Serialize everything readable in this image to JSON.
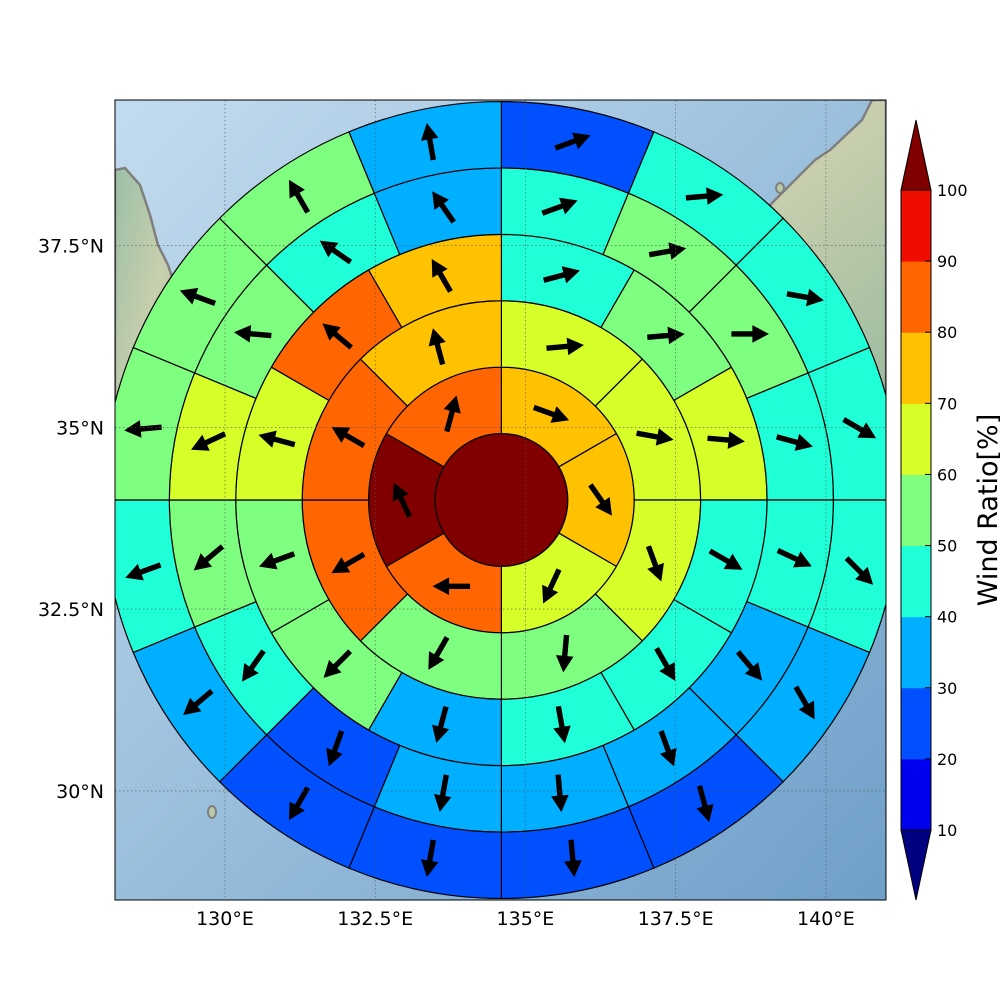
{
  "chart_data": {
    "type": "heatmap",
    "subtype": "polar-sector wind map over geographic basemap",
    "title": "",
    "x_ticks": [
      {
        "lon": 130,
        "label": "130°E"
      },
      {
        "lon": 132.5,
        "label": "132.5°E"
      },
      {
        "lon": 135,
        "label": "135°E"
      },
      {
        "lon": 137.5,
        "label": "137.5°E"
      },
      {
        "lon": 140,
        "label": "140°E"
      }
    ],
    "y_ticks": [
      {
        "lat": 30,
        "label": "30°N"
      },
      {
        "lat": 32.5,
        "label": "32.5°N"
      },
      {
        "lat": 35,
        "label": "35°N"
      },
      {
        "lat": 37.5,
        "label": "37.5°N"
      }
    ],
    "xlim": [
      128.17,
      141.0
    ],
    "ylim": [
      28.5,
      39.5
    ],
    "grid": true,
    "center": {
      "lon": 134.6,
      "lat": 34.0
    },
    "ring_radius_deg": [
      1.0,
      2.0,
      3.0,
      4.0,
      5.0,
      6.0
    ],
    "sectors_per_ring": [
      1,
      6,
      8,
      12,
      16,
      16
    ],
    "sector_order": "clockwise from north",
    "ratio_values": [
      [
        100
      ],
      [
        75,
        75,
        65,
        85,
        100,
        85
      ],
      [
        65,
        65,
        65,
        55,
        55,
        85,
        85,
        75
      ],
      [
        45,
        55,
        65,
        45,
        45,
        45,
        35,
        55,
        55,
        65,
        85,
        75
      ],
      [
        45,
        55,
        55,
        45,
        45,
        35,
        35,
        35,
        35,
        25,
        45,
        55,
        65,
        55,
        45,
        35
      ],
      [
        25,
        45,
        45,
        45,
        45,
        35,
        25,
        25,
        25,
        25,
        35,
        45,
        55,
        55,
        55,
        35
      ]
    ],
    "wind_direction_deg": [
      [
        null
      ],
      [
        110,
        145,
        205,
        270,
        335,
        15
      ],
      [
        85,
        100,
        160,
        185,
        210,
        240,
        300,
        345
      ],
      [
        75,
        85,
        95,
        120,
        150,
        170,
        195,
        225,
        250,
        285,
        310,
        330
      ],
      [
        70,
        80,
        90,
        105,
        115,
        140,
        160,
        175,
        190,
        200,
        215,
        230,
        245,
        275,
        305,
        325
      ],
      [
        70,
        85,
        100,
        120,
        135,
        150,
        165,
        175,
        190,
        210,
        230,
        250,
        265,
        290,
        330,
        350
      ]
    ],
    "colorbar": {
      "label": "Wind Ratio[%]",
      "tick_labels": [
        "10",
        "20",
        "30",
        "40",
        "50",
        "60",
        "70",
        "80",
        "90",
        "100"
      ],
      "bounds": [
        10,
        20,
        30,
        40,
        50,
        60,
        70,
        80,
        90,
        100
      ],
      "extend": "both",
      "under_color": "#000080",
      "over_color": "#800000",
      "colors": [
        "#0000ef",
        "#0050ff",
        "#00afff",
        "#1fffd8",
        "#7fff80",
        "#d6ff29",
        "#ffc200",
        "#ff6500",
        "#ef0d00"
      ]
    }
  }
}
